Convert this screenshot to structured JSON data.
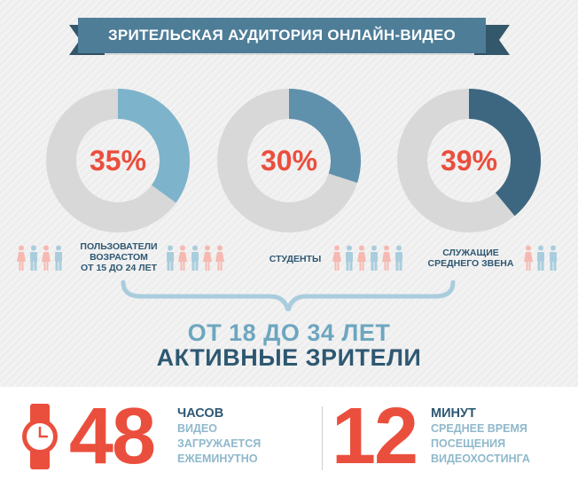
{
  "title": "ЗРИТЕЛЬСКАЯ АУДИТОРИЯ ОНЛАЙН-ВИДЕО",
  "colors": {
    "accent_red": "#ea4f3d",
    "ribbon": "#4e7d98",
    "navy": "#2e5872",
    "light_blue": "#6da6c0",
    "pale_blue": "#8fb8cc",
    "track": "#d8d8d8"
  },
  "chart_data": [
    {
      "type": "pie",
      "variant": "donut",
      "label_lines": [
        "ПОЛЬЗОВАТЕЛИ",
        "ВОЗРАСТОМ",
        "ОТ 15 ДО 24 ЛЕТ"
      ],
      "value": 35,
      "value_label": "35%",
      "color": "#7db4cc"
    },
    {
      "type": "pie",
      "variant": "donut",
      "label_lines": [
        "СТУДЕНТЫ"
      ],
      "value": 30,
      "value_label": "30%",
      "color": "#5f91ad"
    },
    {
      "type": "pie",
      "variant": "donut",
      "label_lines": [
        "СЛУЖАЩИЕ",
        "СРЕДНЕГО ЗВЕНА"
      ],
      "value": 39,
      "value_label": "39%",
      "color": "#3d6780"
    }
  ],
  "people_groups": [
    [
      "female",
      "male",
      "female",
      "male"
    ],
    [
      "male",
      "female",
      "male",
      "female",
      "female"
    ],
    [
      "female",
      "male",
      "female",
      "male",
      "female",
      "male"
    ],
    [
      "female",
      "male",
      "male"
    ]
  ],
  "summary": {
    "age_line": "ОТ 18 ДО 34 ЛЕТ",
    "active_line": "АКТИВНЫЕ ЗРИТЕЛИ"
  },
  "stats": [
    {
      "number": "48",
      "heading": "ЧАСОВ",
      "lines": [
        "ВИДЕО",
        "ЗАГРУЖАЕТСЯ",
        "ЕЖЕМИНУТНО"
      ]
    },
    {
      "number": "12",
      "heading": "МИНУТ",
      "lines": [
        "СРЕДНЕЕ ВРЕМЯ",
        "ПОСЕЩЕНИЯ",
        "ВИДЕОХОСТИНГА"
      ]
    }
  ],
  "icons": {
    "watch": "wristwatch-icon",
    "female": "female-person-icon",
    "male": "male-person-icon"
  }
}
